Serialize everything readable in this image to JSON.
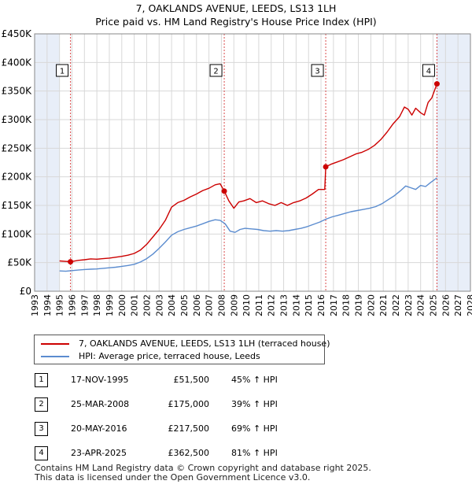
{
  "title_line1": "7, OAKLANDS AVENUE, LEEDS, LS13 1LH",
  "title_line2": "Price paid vs. HM Land Registry's House Price Index (HPI)",
  "colors": {
    "property": "#cc0000",
    "hpi": "#5b8ccf",
    "shade": "#e8eef8",
    "grid": "#d8d8d8",
    "marker_line": "#cc0000"
  },
  "chart_data": {
    "type": "line",
    "title": "Price paid vs. HM Land Registry's House Price Index (HPI)",
    "xlabel": "",
    "ylabel": "",
    "xlim": [
      1993,
      2028
    ],
    "ylim": [
      0,
      450000
    ],
    "x_ticks": [
      1993,
      1994,
      1995,
      1996,
      1997,
      1998,
      1999,
      2000,
      2001,
      2002,
      2003,
      2004,
      2005,
      2006,
      2007,
      2008,
      2009,
      2010,
      2011,
      2012,
      2013,
      2014,
      2015,
      2016,
      2017,
      2018,
      2019,
      2020,
      2021,
      2022,
      2023,
      2024,
      2025,
      2026,
      2027,
      2028
    ],
    "y_ticks": [
      0,
      50000,
      100000,
      150000,
      200000,
      250000,
      300000,
      350000,
      400000,
      450000
    ],
    "y_tick_labels": [
      "£0",
      "£50K",
      "£100K",
      "£150K",
      "£200K",
      "£250K",
      "£300K",
      "£350K",
      "£400K",
      "£450K"
    ],
    "shaded_ranges": [
      [
        1993,
        1995.0
      ],
      [
        2025.3,
        2028
      ]
    ],
    "grid": true,
    "series": [
      {
        "name": "7, OAKLANDS AVENUE, LEEDS, LS13 1LH (terraced house)",
        "x": [
          1995.0,
          1995.88,
          1996.5,
          1997,
          1997.5,
          1998,
          1998.5,
          1999,
          1999.5,
          2000,
          2000.5,
          2001,
          2001.5,
          2002,
          2002.5,
          2003,
          2003.5,
          2004,
          2004.5,
          2005,
          2005.5,
          2006,
          2006.5,
          2007,
          2007.5,
          2007.9,
          2008.23,
          2008.6,
          2009,
          2009.4,
          2009.8,
          2010.3,
          2010.8,
          2011.3,
          2011.8,
          2012.3,
          2012.8,
          2013.3,
          2013.8,
          2014.3,
          2014.8,
          2015.3,
          2015.8,
          2016.3,
          2016.38,
          2016.8,
          2017.3,
          2017.8,
          2018.3,
          2018.8,
          2019.3,
          2019.8,
          2020.3,
          2020.8,
          2021.3,
          2021.8,
          2022.3,
          2022.7,
          2023.0,
          2023.3,
          2023.6,
          2024.0,
          2024.3,
          2024.6,
          2024.9,
          2025.31
        ],
        "y": [
          53000,
          51500,
          54000,
          55000,
          56500,
          56000,
          57000,
          58000,
          59500,
          61000,
          63000,
          66000,
          72000,
          82000,
          95000,
          108000,
          124000,
          147000,
          155000,
          159000,
          165000,
          170000,
          176000,
          180000,
          186000,
          188000,
          175000,
          158000,
          145000,
          156000,
          158000,
          162000,
          155000,
          158000,
          153000,
          150000,
          155000,
          150000,
          155000,
          158000,
          163000,
          170000,
          178000,
          178000,
          217500,
          222000,
          226000,
          230000,
          235000,
          240000,
          243000,
          248000,
          255000,
          265000,
          278000,
          293000,
          305000,
          322000,
          318000,
          308000,
          320000,
          312000,
          308000,
          330000,
          338000,
          362500
        ]
      },
      {
        "name": "HPI: Average price, terraced house, Leeds",
        "x": [
          1995.0,
          1995.5,
          1996,
          1996.5,
          1997,
          1997.5,
          1998,
          1998.5,
          1999,
          1999.5,
          2000,
          2000.5,
          2001,
          2001.5,
          2002,
          2002.5,
          2003,
          2003.5,
          2004,
          2004.5,
          2005,
          2005.5,
          2006,
          2006.5,
          2007,
          2007.5,
          2007.9,
          2008.3,
          2008.7,
          2009.1,
          2009.5,
          2009.9,
          2010.4,
          2010.9,
          2011.4,
          2011.9,
          2012.4,
          2012.9,
          2013.4,
          2013.9,
          2014.4,
          2014.9,
          2015.4,
          2015.9,
          2016.4,
          2016.9,
          2017.4,
          2017.9,
          2018.4,
          2018.9,
          2019.4,
          2019.9,
          2020.4,
          2020.9,
          2021.4,
          2021.9,
          2022.4,
          2022.8,
          2023.2,
          2023.6,
          2024.0,
          2024.4,
          2024.8,
          2025.3
        ],
        "y": [
          35500,
          35000,
          36000,
          37000,
          38000,
          38500,
          39000,
          40000,
          41000,
          42000,
          43500,
          45000,
          47000,
          51000,
          57000,
          65000,
          75000,
          86000,
          98000,
          104000,
          108000,
          111000,
          114000,
          118000,
          122000,
          125000,
          124000,
          118000,
          105000,
          103000,
          108000,
          110000,
          109000,
          108000,
          106000,
          105000,
          106000,
          105000,
          106000,
          108000,
          110000,
          113000,
          117000,
          121000,
          126000,
          130000,
          133000,
          136000,
          139000,
          141000,
          143000,
          145000,
          148000,
          153000,
          160000,
          167000,
          176000,
          184000,
          181000,
          178000,
          185000,
          183000,
          190000,
          198000
        ]
      }
    ],
    "sales": [
      {
        "n": "1",
        "x": 1995.88,
        "y": 51500
      },
      {
        "n": "2",
        "x": 2008.23,
        "y": 175000
      },
      {
        "n": "3",
        "x": 2016.38,
        "y": 217500
      },
      {
        "n": "4",
        "x": 2025.31,
        "y": 362500
      }
    ]
  },
  "legend": {
    "property_label": "7, OAKLANDS AVENUE, LEEDS, LS13 1LH (terraced house)",
    "hpi_label": "HPI: Average price, terraced house, Leeds"
  },
  "table": [
    {
      "n": "1",
      "date": "17-NOV-1995",
      "price": "£51,500",
      "hpi": "45% ↑ HPI"
    },
    {
      "n": "2",
      "date": "25-MAR-2008",
      "price": "£175,000",
      "hpi": "39% ↑ HPI"
    },
    {
      "n": "3",
      "date": "20-MAY-2016",
      "price": "£217,500",
      "hpi": "69% ↑ HPI"
    },
    {
      "n": "4",
      "date": "23-APR-2025",
      "price": "£362,500",
      "hpi": "81% ↑ HPI"
    }
  ],
  "footer": {
    "line1": "Contains HM Land Registry data © Crown copyright and database right 2025.",
    "line2": "This data is licensed under the Open Government Licence v3.0."
  }
}
